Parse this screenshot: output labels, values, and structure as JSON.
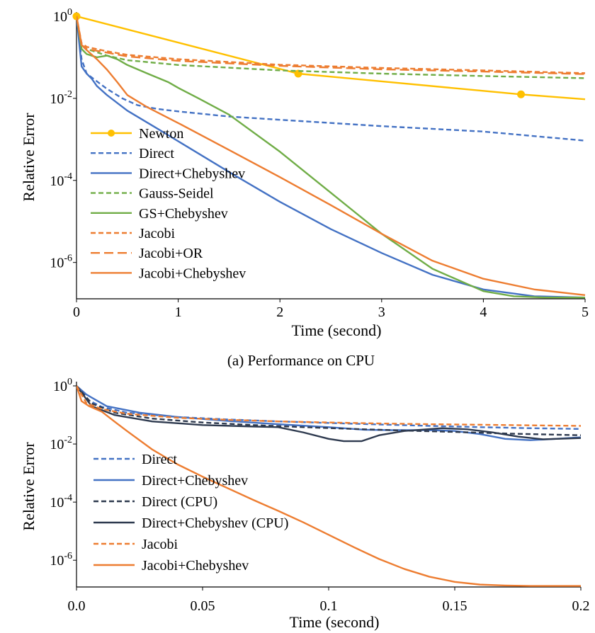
{
  "chart_data": [
    {
      "type": "line",
      "caption": "(a)  Performance on CPU",
      "xlabel": "Time (second)",
      "ylabel": "Relative Error",
      "xlim": [
        0,
        5
      ],
      "ylim": [
        1.3e-07,
        1.0
      ],
      "yscale": "log",
      "xticks": [
        0,
        1,
        2,
        3,
        4,
        5
      ],
      "xtick_labels": [
        "0",
        "1",
        "2",
        "3",
        "4",
        "5"
      ],
      "yticks": [
        1,
        0.01,
        0.0001,
        1e-06
      ],
      "ytick_labels": [
        {
          "base": "10",
          "exp": "0"
        },
        {
          "base": "10",
          "exp": "-2"
        },
        {
          "base": "10",
          "exp": "-4"
        },
        {
          "base": "10",
          "exp": "-6"
        }
      ],
      "grid": false,
      "legend_position": "bottom-left",
      "series": [
        {
          "name": "Newton",
          "color": "#FFC000",
          "dash": "solid",
          "marker": "circle",
          "x": [
            0,
            2.18,
            4.37,
            5.0
          ],
          "y": [
            1.0,
            0.04,
            0.0125,
            0.0095
          ],
          "marker_x": [
            0,
            2.18,
            4.37
          ],
          "marker_y": [
            1.0,
            0.04,
            0.0125
          ]
        },
        {
          "name": "Direct",
          "color": "#4472C4",
          "dash": "dashed",
          "x": [
            0,
            0.05,
            0.1,
            0.2,
            0.3,
            0.45,
            0.6,
            0.8,
            1.0,
            1.5,
            2.0,
            3.0,
            4.0,
            5.0
          ],
          "y": [
            1.0,
            0.09,
            0.04,
            0.026,
            0.017,
            0.01,
            0.0068,
            0.0055,
            0.0048,
            0.0036,
            0.003,
            0.0021,
            0.00155,
            0.00093
          ]
        },
        {
          "name": "Direct+Chebyshev",
          "color": "#4472C4",
          "dash": "solid",
          "x": [
            0,
            0.05,
            0.1,
            0.15,
            0.2,
            0.3,
            0.5,
            0.8,
            1.0,
            1.5,
            2.0,
            2.5,
            3.0,
            3.5,
            4.0,
            4.5,
            5.0
          ],
          "y": [
            1.0,
            0.06,
            0.04,
            0.03,
            0.02,
            0.012,
            0.005,
            0.0018,
            0.0009,
            0.00016,
            3e-05,
            6.5e-06,
            1.7e-06,
            5e-07,
            2.2e-07,
            1.5e-07,
            1.4e-07
          ]
        },
        {
          "name": "Gauss-Seidel",
          "color": "#70AD47",
          "dash": "dashed",
          "x": [
            0,
            0.05,
            0.1,
            0.3,
            0.5,
            1.0,
            2.0,
            3.0,
            4.0,
            5.0
          ],
          "y": [
            1.0,
            0.2,
            0.16,
            0.11,
            0.085,
            0.065,
            0.048,
            0.04,
            0.035,
            0.031
          ]
        },
        {
          "name": "GS+Chebyshev",
          "color": "#70AD47",
          "dash": "solid",
          "x": [
            0,
            0.05,
            0.1,
            0.2,
            0.3,
            0.4,
            0.5,
            0.7,
            0.9,
            1.0,
            1.2,
            1.5,
            2.0,
            2.5,
            3.0,
            3.5,
            4.0,
            4.3,
            4.6,
            5.0
          ],
          "y": [
            1.0,
            0.16,
            0.12,
            0.1,
            0.11,
            0.09,
            0.065,
            0.04,
            0.025,
            0.018,
            0.01,
            0.004,
            0.0005,
            5e-05,
            5e-06,
            7e-07,
            2e-07,
            1.5e-07,
            1.4e-07,
            1.4e-07
          ]
        },
        {
          "name": "Jacobi",
          "color": "#ED7D31",
          "dash": "dashed",
          "x": [
            0,
            0.05,
            0.1,
            0.3,
            0.5,
            1.0,
            2.0,
            3.0,
            4.0,
            5.0
          ],
          "y": [
            1.0,
            0.22,
            0.18,
            0.14,
            0.115,
            0.09,
            0.066,
            0.055,
            0.048,
            0.041
          ]
        },
        {
          "name": "Jacobi+OR",
          "color": "#ED7D31",
          "dash": "longdash",
          "x": [
            0,
            0.05,
            0.1,
            0.3,
            0.5,
            1.0,
            2.0,
            3.0,
            4.0,
            5.0
          ],
          "y": [
            1.0,
            0.2,
            0.16,
            0.13,
            0.105,
            0.082,
            0.062,
            0.051,
            0.045,
            0.039
          ]
        },
        {
          "name": "Jacobi+Chebyshev",
          "color": "#ED7D31",
          "dash": "solid",
          "x": [
            0,
            0.05,
            0.1,
            0.2,
            0.3,
            0.4,
            0.5,
            0.7,
            1.0,
            1.5,
            2.0,
            2.5,
            3.0,
            3.5,
            4.0,
            4.5,
            5.0
          ],
          "y": [
            1.0,
            0.2,
            0.15,
            0.09,
            0.05,
            0.025,
            0.012,
            0.006,
            0.0025,
            0.00055,
            0.00012,
            2.5e-05,
            5e-06,
            1.1e-06,
            4e-07,
            2.2e-07,
            1.6e-07
          ]
        }
      ]
    },
    {
      "type": "line",
      "xlabel": "Time (second)",
      "ylabel": "Relative Error",
      "xlim": [
        0,
        0.2
      ],
      "ylim": [
        1.2e-07,
        1.0
      ],
      "yscale": "log",
      "xticks": [
        0,
        0.05,
        0.1,
        0.15,
        0.2
      ],
      "xtick_labels": [
        "0.0",
        "0.05",
        "0.1",
        "0.15",
        "0.2"
      ],
      "yticks": [
        1,
        0.01,
        0.0001,
        1e-06
      ],
      "ytick_labels": [
        {
          "base": "10",
          "exp": "0"
        },
        {
          "base": "10",
          "exp": "-2"
        },
        {
          "base": "10",
          "exp": "-4"
        },
        {
          "base": "10",
          "exp": "-6"
        }
      ],
      "grid": false,
      "legend_position": "bottom-left",
      "series": [
        {
          "name": "Direct",
          "color": "#4472C4",
          "dash": "dashed",
          "x": [
            0,
            0.004,
            0.01,
            0.02,
            0.04,
            0.06,
            0.08,
            0.1,
            0.12,
            0.14,
            0.16,
            0.18,
            0.2
          ],
          "y": [
            1.0,
            0.35,
            0.19,
            0.12,
            0.085,
            0.07,
            0.06,
            0.053,
            0.047,
            0.042,
            0.038,
            0.035,
            0.033
          ]
        },
        {
          "name": "Direct+Chebyshev",
          "color": "#4472C4",
          "dash": "solid",
          "x": [
            0,
            0.004,
            0.012,
            0.025,
            0.04,
            0.06,
            0.08,
            0.1,
            0.108,
            0.114,
            0.125,
            0.14,
            0.15,
            0.16,
            0.17,
            0.18,
            0.19,
            0.2
          ],
          "y": [
            1.0,
            0.5,
            0.2,
            0.12,
            0.085,
            0.062,
            0.048,
            0.038,
            0.034,
            0.031,
            0.03,
            0.03,
            0.028,
            0.022,
            0.015,
            0.0135,
            0.015,
            0.017
          ]
        },
        {
          "name": "Direct (CPU)",
          "color": "#2E3A4F",
          "dash": "dashed",
          "x": [
            0,
            0.006,
            0.015,
            0.03,
            0.05,
            0.07,
            0.09,
            0.11,
            0.13,
            0.15,
            0.17,
            0.2
          ],
          "y": [
            1.0,
            0.25,
            0.12,
            0.075,
            0.055,
            0.045,
            0.038,
            0.033,
            0.029,
            0.026,
            0.023,
            0.02
          ]
        },
        {
          "name": "Direct+Chebyshev (CPU)",
          "color": "#2E3A4F",
          "dash": "solid",
          "x": [
            0,
            0.006,
            0.015,
            0.03,
            0.05,
            0.07,
            0.08,
            0.09,
            0.1,
            0.106,
            0.113,
            0.12,
            0.13,
            0.145,
            0.155,
            0.165,
            0.175,
            0.185,
            0.2
          ],
          "y": [
            1.0,
            0.2,
            0.1,
            0.06,
            0.045,
            0.04,
            0.038,
            0.025,
            0.015,
            0.0125,
            0.0125,
            0.02,
            0.028,
            0.035,
            0.032,
            0.025,
            0.018,
            0.0145,
            0.016
          ]
        },
        {
          "name": "Jacobi",
          "color": "#ED7D31",
          "dash": "dashed",
          "x": [
            0,
            0.004,
            0.01,
            0.02,
            0.04,
            0.06,
            0.08,
            0.1,
            0.12,
            0.14,
            0.16,
            0.18,
            0.2
          ],
          "y": [
            1.0,
            0.25,
            0.16,
            0.11,
            0.08,
            0.068,
            0.06,
            0.055,
            0.051,
            0.048,
            0.046,
            0.044,
            0.042
          ]
        },
        {
          "name": "Jacobi+Chebyshev",
          "color": "#ED7D31",
          "dash": "solid",
          "x": [
            0,
            0.002,
            0.005,
            0.01,
            0.015,
            0.02,
            0.03,
            0.04,
            0.05,
            0.06,
            0.07,
            0.08,
            0.09,
            0.1,
            0.11,
            0.12,
            0.13,
            0.14,
            0.15,
            0.16,
            0.17,
            0.18,
            0.19,
            0.2
          ],
          "y": [
            1.0,
            0.3,
            0.2,
            0.13,
            0.06,
            0.028,
            0.0065,
            0.002,
            0.00075,
            0.0003,
            0.00012,
            5e-05,
            2e-05,
            7.5e-06,
            2.8e-06,
            1.1e-06,
            5e-07,
            2.7e-07,
            1.8e-07,
            1.45e-07,
            1.35e-07,
            1.3e-07,
            1.3e-07,
            1.3e-07
          ]
        }
      ]
    }
  ]
}
